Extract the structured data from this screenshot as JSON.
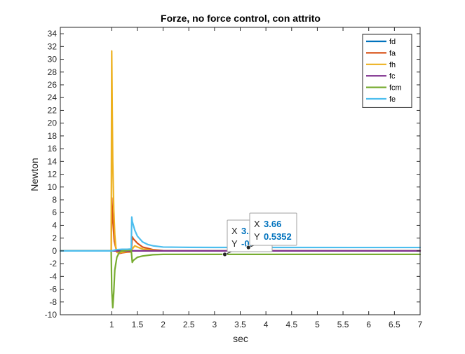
{
  "chart_data": {
    "type": "line",
    "title": "Forze, no force control, con attrito",
    "xlabel": "sec",
    "ylabel": "Newton",
    "xlim": [
      0,
      7
    ],
    "ylim": [
      -10,
      35
    ],
    "xticks": [
      1,
      1.5,
      2,
      2.5,
      3,
      3.5,
      4,
      4.5,
      5,
      5.5,
      6,
      6.5,
      7
    ],
    "xtick_labels": [
      "1",
      "1.5",
      "2",
      "2.5",
      "3",
      "3.5",
      "4",
      "4.5",
      "5",
      "5.5",
      "6",
      "6.5",
      "7"
    ],
    "yticks": [
      -10,
      -8,
      -6,
      -4,
      -2,
      0,
      2,
      4,
      6,
      8,
      10,
      12,
      14,
      16,
      18,
      20,
      22,
      24,
      26,
      28,
      30,
      32,
      34
    ],
    "ytick_labels": [
      "-10",
      "-8",
      "-6",
      "-4",
      "-2",
      "0",
      "2",
      "4",
      "6",
      "8",
      "10",
      "12",
      "14",
      "16",
      "18",
      "20",
      "22",
      "24",
      "26",
      "28",
      "30",
      "32",
      "34"
    ],
    "grid": false,
    "legend_position": "top-right",
    "series": [
      {
        "name": "fd",
        "color": "#0072bd",
        "x": [
          0,
          7
        ],
        "y": [
          0,
          0
        ]
      },
      {
        "name": "fa",
        "color": "#d95319",
        "x": [
          0,
          0.99,
          1.0,
          1.02,
          1.05,
          1.1,
          1.15,
          1.2,
          1.3,
          1.38,
          1.4,
          1.42,
          1.5,
          1.6,
          1.8,
          2.0,
          2.5,
          7
        ],
        "y": [
          0,
          0,
          8.3,
          5.0,
          1.5,
          -0.2,
          -0.4,
          -0.3,
          -0.2,
          -0.15,
          2.2,
          1.9,
          1.2,
          0.6,
          0.2,
          0.05,
          0.0,
          0.0
        ]
      },
      {
        "name": "fh",
        "color": "#edb120",
        "x": [
          0,
          0.99,
          1.0,
          1.01,
          1.02,
          1.04,
          1.06,
          1.08,
          1.1,
          1.15,
          1.2,
          1.3,
          1.38,
          1.4,
          1.45,
          1.5,
          1.6,
          1.8,
          2.0,
          2.5,
          7
        ],
        "y": [
          0,
          0,
          31.3,
          22.0,
          14.0,
          6.5,
          2.5,
          0.6,
          -0.2,
          -0.3,
          -0.2,
          -0.1,
          0.0,
          0.3,
          0.8,
          0.6,
          0.3,
          0.1,
          0.0,
          0.0,
          0.0
        ]
      },
      {
        "name": "fc",
        "color": "#7e2f8e",
        "x": [
          0,
          7
        ],
        "y": [
          0,
          0
        ]
      },
      {
        "name": "fcm",
        "color": "#77ac30",
        "x": [
          0,
          0.99,
          1.0,
          1.02,
          1.04,
          1.06,
          1.1,
          1.15,
          1.2,
          1.3,
          1.38,
          1.4,
          1.42,
          1.5,
          1.6,
          1.8,
          2.0,
          2.5,
          3.2,
          7
        ],
        "y": [
          0,
          0,
          -6.0,
          -8.9,
          -6.5,
          -3.0,
          -1.0,
          -0.2,
          0.0,
          0.1,
          0.1,
          -1.8,
          -1.5,
          -1.0,
          -0.8,
          -0.6,
          -0.55,
          -0.55,
          -0.55,
          -0.55
        ]
      },
      {
        "name": "fe",
        "color": "#4dbeee",
        "x": [
          0,
          1.0,
          1.05,
          1.1,
          1.2,
          1.3,
          1.38,
          1.39,
          1.4,
          1.45,
          1.5,
          1.6,
          1.7,
          1.8,
          2.0,
          2.5,
          3.0,
          3.66,
          7
        ],
        "y": [
          0,
          0,
          0.1,
          0.2,
          0.25,
          0.25,
          0.3,
          5.3,
          4.6,
          3.2,
          2.3,
          1.4,
          1.0,
          0.8,
          0.6,
          0.55,
          0.54,
          0.5352,
          0.53
        ]
      }
    ],
    "annotations": [
      {
        "x_label": "X",
        "y_label": "Y",
        "x_value": "3.2",
        "y_value": "-0.",
        "point_x": 3.2,
        "point_y": -0.55
      },
      {
        "x_label": "X",
        "y_label": "Y",
        "x_value": "3.66",
        "y_value": "0.5352",
        "point_x": 3.66,
        "point_y": 0.5352
      }
    ]
  }
}
